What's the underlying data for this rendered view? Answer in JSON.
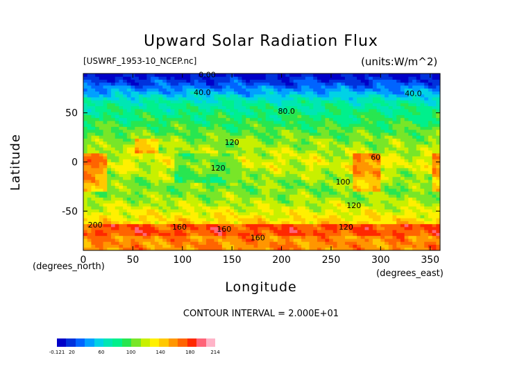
{
  "chart_data": {
    "type": "heatmap",
    "title": "Upward Solar Radiation Flux",
    "subtitle_left": "[USWRF_1953-10_NCEP.nc]",
    "subtitle_right": "(units:W/m^2)",
    "xlabel": "Longitude",
    "ylabel": "Latitude",
    "x_unit_label": "(degrees_east)",
    "y_unit_label": "(degrees_north)",
    "xlim": [
      0,
      360
    ],
    "ylim": [
      -90,
      90
    ],
    "xticks": [
      0,
      50,
      100,
      150,
      200,
      250,
      300,
      350
    ],
    "yticks": [
      -50,
      0,
      50
    ],
    "footer": "CONTOUR INTERVAL = 2.000E+01",
    "contour_interval": 20,
    "contour_labels": [
      {
        "text": "0.00",
        "lon": 125,
        "lat": 89
      },
      {
        "text": "40.0",
        "lon": 120,
        "lat": 71
      },
      {
        "text": "40.0",
        "lon": 333,
        "lat": 70
      },
      {
        "text": "80.0",
        "lon": 205,
        "lat": 52
      },
      {
        "text": "120",
        "lon": 150,
        "lat": 20
      },
      {
        "text": "120",
        "lon": 136,
        "lat": -6
      },
      {
        "text": "60",
        "lon": 295,
        "lat": 5
      },
      {
        "text": "100",
        "lon": 262,
        "lat": -20
      },
      {
        "text": "120",
        "lon": 273,
        "lat": -44
      },
      {
        "text": "120",
        "lon": 265,
        "lat": -66
      },
      {
        "text": "200",
        "lon": 12,
        "lat": -64
      },
      {
        "text": "160",
        "lon": 97,
        "lat": -66
      },
      {
        "text": "160",
        "lon": 142,
        "lat": -68
      },
      {
        "text": "160",
        "lon": 176,
        "lat": -77
      }
    ],
    "colorbar": {
      "min_label": "-0.121",
      "max_label": "214",
      "labels": [
        "-0.121",
        "20",
        "60",
        "100",
        "140",
        "180",
        "214"
      ],
      "label_values": [
        -0.121,
        20,
        60,
        100,
        140,
        180,
        214
      ],
      "colors": [
        "#0000c8",
        "#0032dc",
        "#0064ff",
        "#00a0ff",
        "#00d2e6",
        "#00e6b4",
        "#00f08c",
        "#28e650",
        "#78e628",
        "#c8f000",
        "#fff000",
        "#ffc800",
        "#ff9600",
        "#ff6400",
        "#ff2800",
        "#ff6478",
        "#ffb4c8"
      ]
    }
  }
}
